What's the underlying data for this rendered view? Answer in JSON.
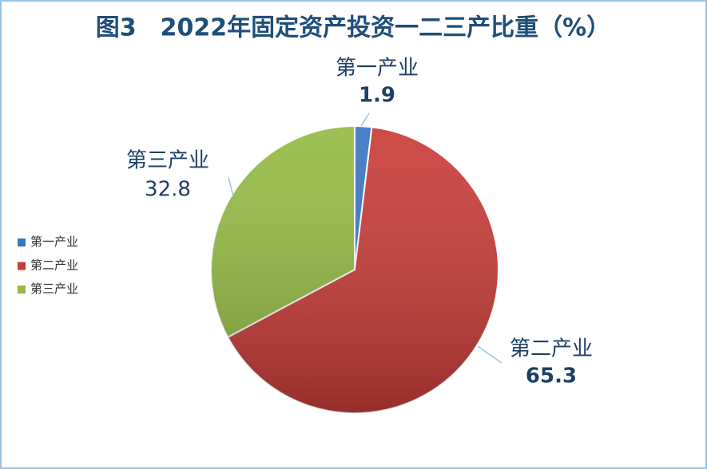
{
  "chart_data": {
    "type": "pie",
    "title": "图3　2022年固定资产投资一二三产比重（%）",
    "categories": [
      "第一产业",
      "第二产业",
      "第三产业"
    ],
    "values": [
      1.9,
      65.3,
      32.8
    ],
    "colors": [
      "#3b76c3",
      "#c93c38",
      "#94bb43"
    ],
    "legend": "left"
  }
}
